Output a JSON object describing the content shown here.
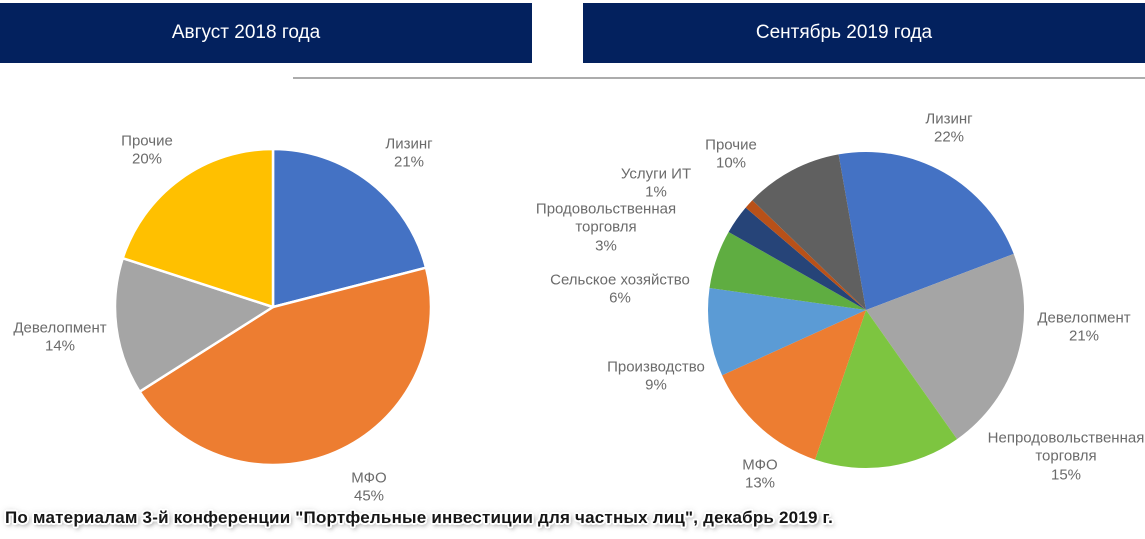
{
  "headers": [
    {
      "label": "Август 2018 года"
    },
    {
      "label": "Сентябрь 2019 года"
    }
  ],
  "caption": "По материалам 3-й конференции \"Портфельные инвестиции для частных лиц\", декабрь 2019 г.",
  "colors": {
    "header_bg": "#03215E",
    "header_text": "#FFFFFF",
    "label_text": "#6B6B6B",
    "divider": "#ACACAC"
  },
  "chart_data": [
    {
      "type": "pie",
      "title": "Август 2018 года",
      "start_angle_deg": 0,
      "slice_border": "#FFFFFF",
      "legend_position": "outside-labels",
      "slices": [
        {
          "label": "Лизинг",
          "value": 21,
          "pct_label": "21%",
          "color": "#4472C4"
        },
        {
          "label": "МФО",
          "value": 45,
          "pct_label": "45%",
          "color": "#ED7D31"
        },
        {
          "label": "Девелопмент",
          "value": 14,
          "pct_label": "14%",
          "color": "#A5A5A5"
        },
        {
          "label": "Прочие",
          "value": 20,
          "pct_label": "20%",
          "color": "#FFC000"
        }
      ]
    },
    {
      "type": "pie",
      "title": "Сентябрь 2019 года",
      "start_angle_deg": -10,
      "slice_border": null,
      "legend_position": "outside-labels",
      "slices": [
        {
          "label": "Лизинг",
          "value": 22,
          "pct_label": "22%",
          "color": "#4472C4"
        },
        {
          "label": "Девелопмент",
          "value": 21,
          "pct_label": "21%",
          "color": "#A5A5A5"
        },
        {
          "label": "Непродовольственная торговля",
          "value": 15,
          "pct_label": "15%",
          "color": "#7DC540"
        },
        {
          "label": "МФО",
          "value": 13,
          "pct_label": "13%",
          "color": "#ED7D31"
        },
        {
          "label": "Производство",
          "value": 9,
          "pct_label": "9%",
          "color": "#5B9BD5"
        },
        {
          "label": "Сельское хозяйство",
          "value": 6,
          "pct_label": "6%",
          "color": "#5FAD41"
        },
        {
          "label": "Продовольственная торговля",
          "value": 3,
          "pct_label": "3%",
          "color": "#264478"
        },
        {
          "label": "Услуги ИТ",
          "value": 1,
          "pct_label": "1%",
          "color": "#B85119"
        },
        {
          "label": "Прочие",
          "value": 10,
          "pct_label": "10%",
          "color": "#606060"
        }
      ]
    }
  ]
}
